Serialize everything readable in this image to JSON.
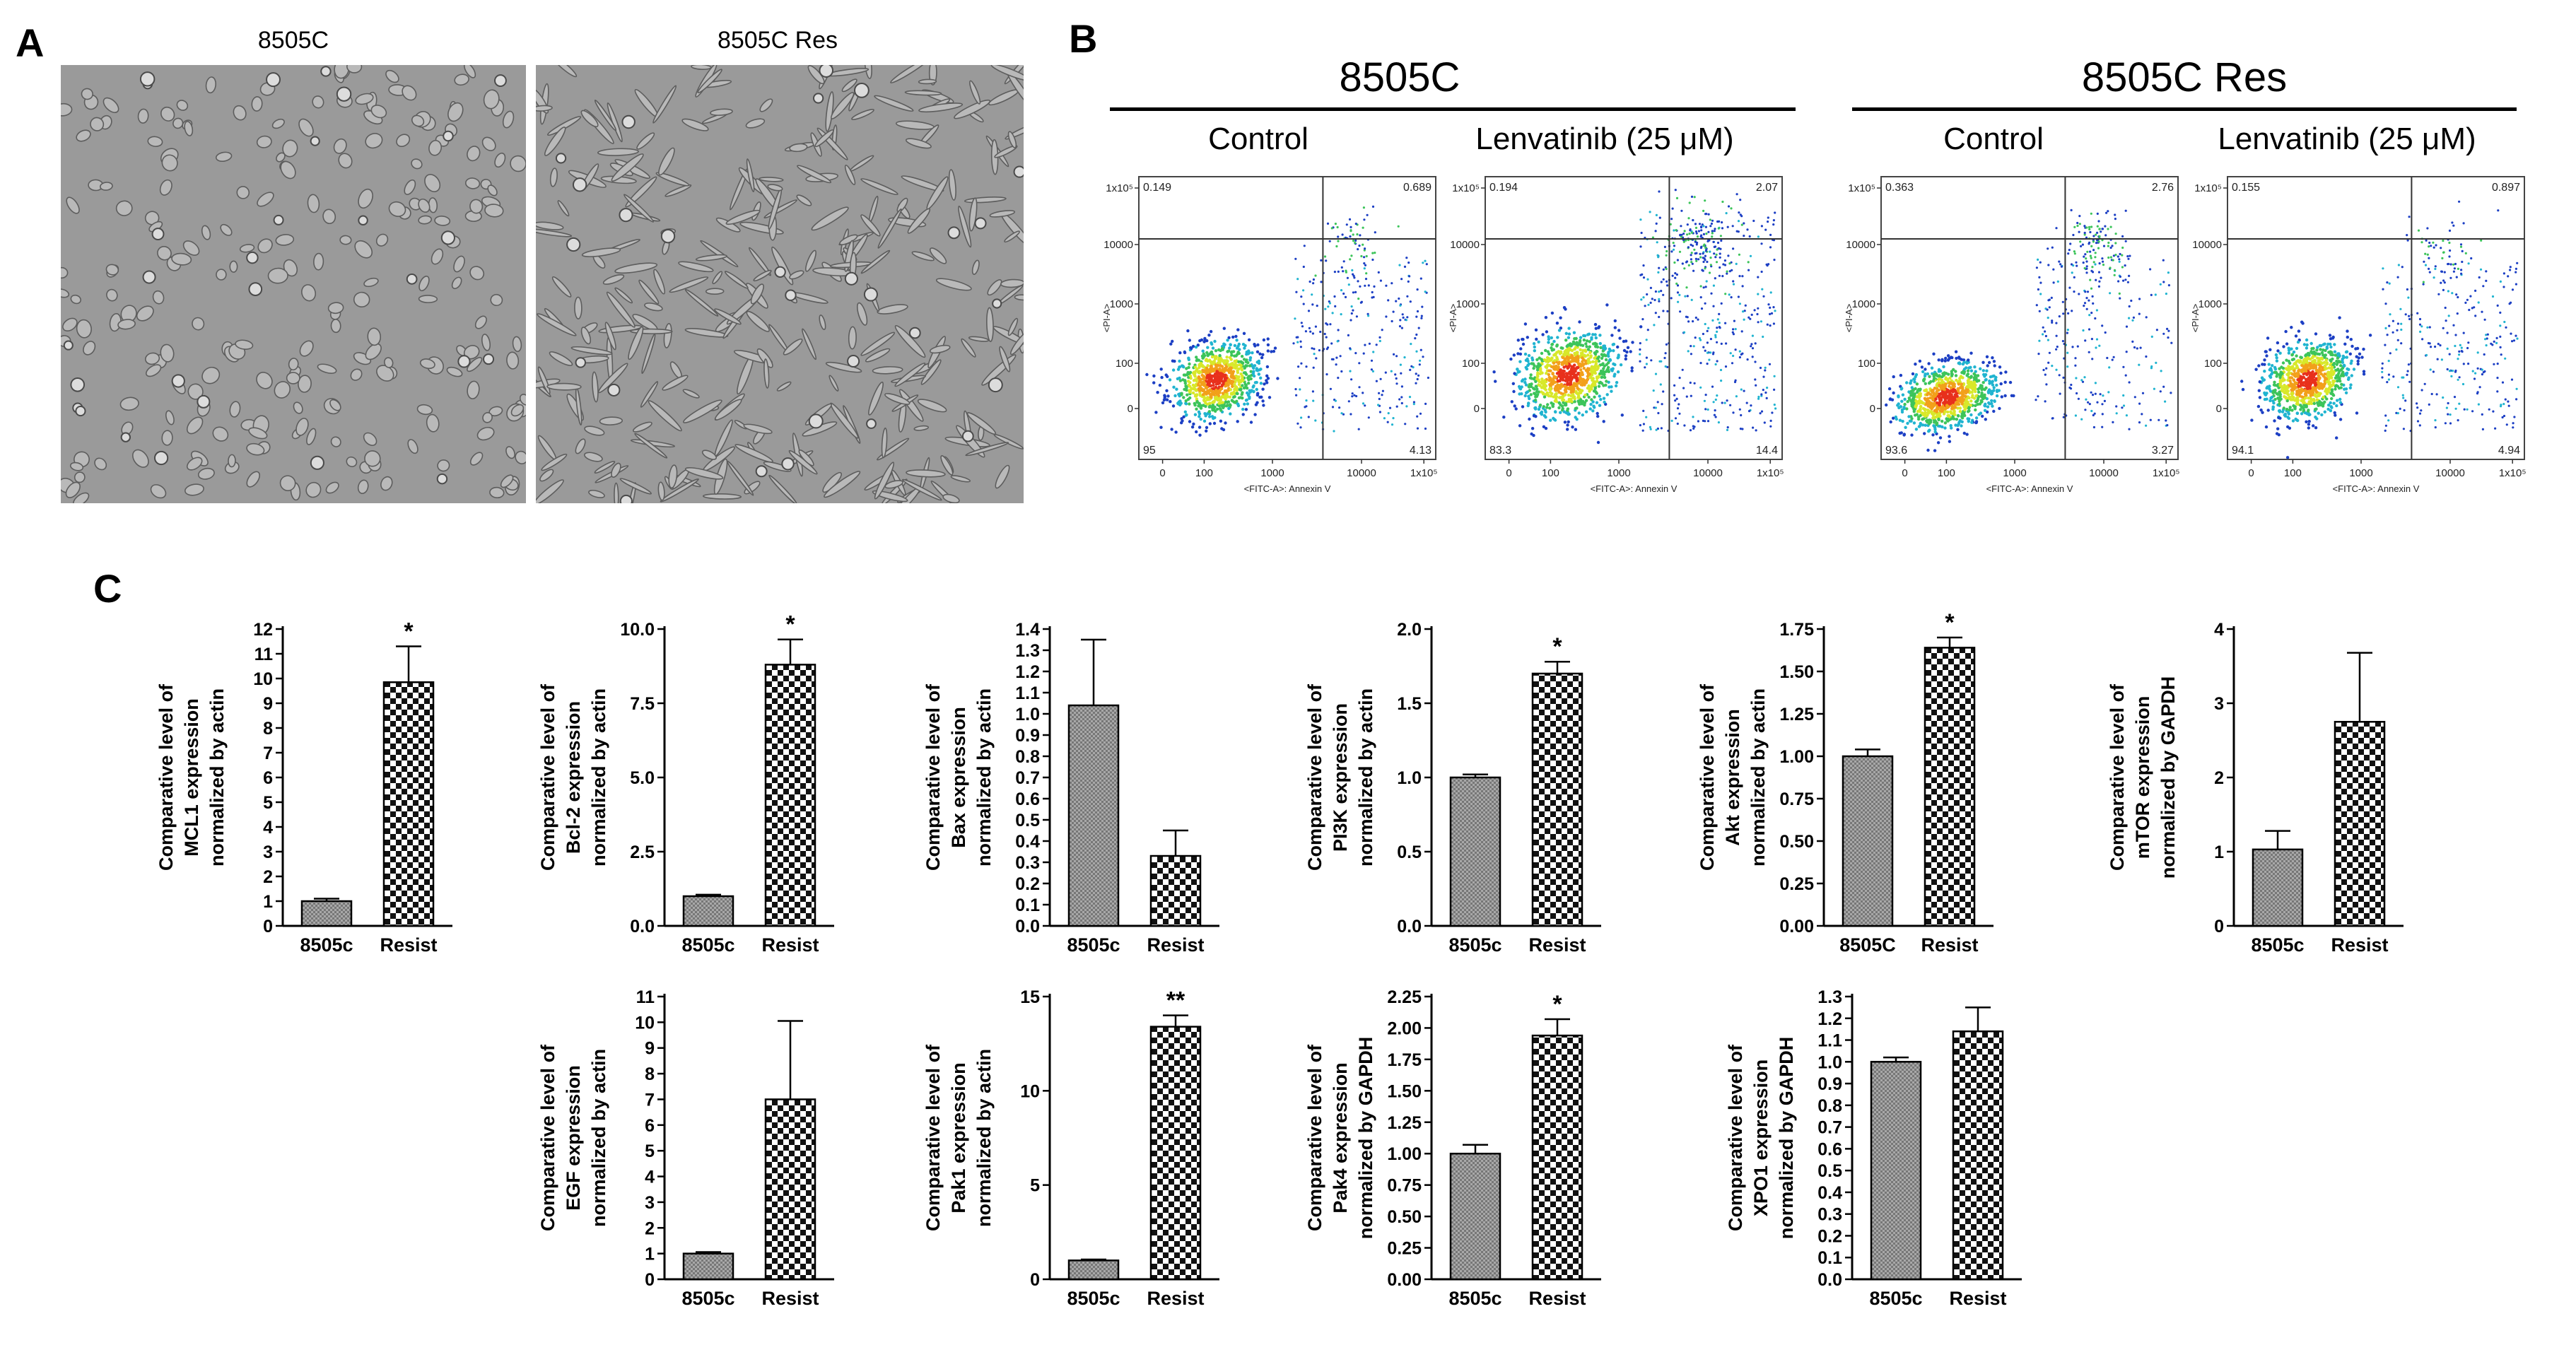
{
  "panel_labels": {
    "a": "A",
    "b": "B",
    "c": "C"
  },
  "panel_a": {
    "images": [
      {
        "caption": "8505C",
        "texture": "rounded cells"
      },
      {
        "caption": "8505C Res",
        "texture": "spindle cells"
      }
    ]
  },
  "panel_b": {
    "groups": [
      {
        "title": "8505C",
        "plots": [
          {
            "title": "Control",
            "q_ul": "0.149",
            "q_ur": "0.689",
            "q_ll": "95",
            "q_lr": "4.13",
            "y_ticks": [
              "1x10⁵",
              "10000",
              "1000",
              "100",
              "0"
            ],
            "x_ticks": [
              "0",
              "100",
              "1000",
              "10000",
              "1x10⁵"
            ],
            "y_title": "<PI-A>",
            "x_title": "<FITC-A>: Annexin V"
          },
          {
            "title": "Lenvatinib (25 μM)",
            "q_ul": "0.194",
            "q_ur": "2.07",
            "q_ll": "83.3",
            "q_lr": "14.4",
            "y_ticks": [
              "1x10⁵",
              "10000",
              "1000",
              "100",
              "0"
            ],
            "x_ticks": [
              "0",
              "100",
              "1000",
              "10000",
              "1x10⁵"
            ],
            "y_title": "<PI-A>",
            "x_title": "<FITC-A>: Annexin V"
          }
        ]
      },
      {
        "title": "8505C Res",
        "plots": [
          {
            "title": "Control",
            "q_ul": "0.363",
            "q_ur": "2.76",
            "q_ll": "93.6",
            "q_lr": "3.27",
            "y_ticks": [
              "1x10⁵",
              "10000",
              "1000",
              "100",
              "0"
            ],
            "x_ticks": [
              "0",
              "100",
              "1000",
              "10000",
              "1x10⁵"
            ],
            "y_title": "<PI-A>",
            "x_title": "<FITC-A>: Annexin V"
          },
          {
            "title": "Lenvatinib (25 μM)",
            "q_ul": "0.155",
            "q_ur": "0.897",
            "q_ll": "94.1",
            "q_lr": "4.94",
            "y_ticks": [
              "1x10⁵",
              "10000",
              "1000",
              "100",
              "0"
            ],
            "x_ticks": [
              "0",
              "100",
              "1000",
              "10000",
              "1x10⁵"
            ],
            "y_title": "<PI-A>",
            "x_title": "<FITC-A>: Annexin V"
          }
        ]
      }
    ]
  },
  "chart_data": [
    {
      "type": "bar",
      "title": "",
      "ylabel_lines": [
        "Comparative level of",
        "MCL1 expression",
        "normalized by actin"
      ],
      "categories": [
        "8505c",
        "Resist"
      ],
      "values": [
        1.0,
        9.85
      ],
      "errors": [
        0.1,
        1.45
      ],
      "ylim": [
        0,
        12
      ],
      "yticks": [
        0,
        1,
        2,
        3,
        4,
        5,
        6,
        7,
        8,
        9,
        10,
        11,
        12
      ],
      "tick_labels": [
        "0",
        "1",
        "2",
        "3",
        "4",
        "5",
        "6",
        "7",
        "8",
        "9",
        "10",
        "11",
        "12"
      ],
      "significance": [
        "",
        "*"
      ]
    },
    {
      "type": "bar",
      "title": "",
      "ylabel_lines": [
        "Comparative level of",
        "Bcl-2 expression",
        "normalized by actin"
      ],
      "categories": [
        "8505c",
        "Resist"
      ],
      "values": [
        1.0,
        8.8
      ],
      "errors": [
        0.05,
        0.85
      ],
      "ylim": [
        0,
        10
      ],
      "yticks": [
        0,
        2.5,
        5,
        7.5,
        10
      ],
      "tick_labels": [
        "0.0",
        "2.5",
        "5.0",
        "7.5",
        "10.0"
      ],
      "significance": [
        "",
        "*"
      ]
    },
    {
      "type": "bar",
      "title": "",
      "ylabel_lines": [
        "Comparative level of",
        "Bax expression",
        "normalized by actin"
      ],
      "categories": [
        "8505c",
        "Resist"
      ],
      "values": [
        1.04,
        0.33
      ],
      "errors": [
        0.31,
        0.12
      ],
      "ylim": [
        0,
        1.4
      ],
      "yticks": [
        0,
        0.1,
        0.2,
        0.3,
        0.4,
        0.5,
        0.6,
        0.7,
        0.8,
        0.9,
        1.0,
        1.1,
        1.2,
        1.3,
        1.4
      ],
      "tick_labels": [
        "0.0",
        "0.1",
        "0.2",
        "0.3",
        "0.4",
        "0.5",
        "0.6",
        "0.7",
        "0.8",
        "0.9",
        "1.0",
        "1.1",
        "1.2",
        "1.3",
        "1.4"
      ],
      "significance": [
        "",
        ""
      ]
    },
    {
      "type": "bar",
      "title": "",
      "ylabel_lines": [
        "Comparative level of",
        "PI3K expression",
        "normalized by actin"
      ],
      "categories": [
        "8505c",
        "Resist"
      ],
      "values": [
        1.0,
        1.7
      ],
      "errors": [
        0.02,
        0.08
      ],
      "ylim": [
        0,
        2.0
      ],
      "yticks": [
        0,
        0.5,
        1.0,
        1.5,
        2.0
      ],
      "tick_labels": [
        "0.0",
        "0.5",
        "1.0",
        "1.5",
        "2.0"
      ],
      "significance": [
        "",
        "*"
      ]
    },
    {
      "type": "bar",
      "title": "",
      "ylabel_lines": [
        "Comparative level of",
        "Akt expression",
        "normalized by actin"
      ],
      "categories": [
        "8505C",
        "Resist"
      ],
      "values": [
        1.0,
        1.64
      ],
      "errors": [
        0.04,
        0.06
      ],
      "ylim": [
        0,
        1.75
      ],
      "yticks": [
        0,
        0.25,
        0.5,
        0.75,
        1.0,
        1.25,
        1.5,
        1.75
      ],
      "tick_labels": [
        "0.00",
        "0.25",
        "0.50",
        "0.75",
        "1.00",
        "1.25",
        "1.50",
        "1.75"
      ],
      "significance": [
        "",
        "*"
      ]
    },
    {
      "type": "bar",
      "title": "",
      "ylabel_lines": [
        "Comparative level of",
        "mTOR expression",
        "normalized by GAPDH"
      ],
      "categories": [
        "8505c",
        "Resist"
      ],
      "values": [
        1.03,
        2.75
      ],
      "errors": [
        0.25,
        0.93
      ],
      "ylim": [
        0,
        4
      ],
      "yticks": [
        0,
        1,
        2,
        3,
        4
      ],
      "tick_labels": [
        "0",
        "1",
        "2",
        "3",
        "4"
      ],
      "significance": [
        "",
        ""
      ]
    },
    {
      "type": "bar",
      "title": "",
      "ylabel_lines": [
        "Comparative level of",
        "EGF expression",
        "normalized by actin"
      ],
      "categories": [
        "8505c",
        "Resist"
      ],
      "values": [
        1.0,
        7.0
      ],
      "errors": [
        0.06,
        3.05
      ],
      "ylim": [
        0,
        11
      ],
      "yticks": [
        0,
        1,
        2,
        3,
        4,
        5,
        6,
        7,
        8,
        9,
        10,
        11
      ],
      "tick_labels": [
        "0",
        "1",
        "2",
        "3",
        "4",
        "5",
        "6",
        "7",
        "8",
        "9",
        "10",
        "11"
      ],
      "significance": [
        "",
        ""
      ]
    },
    {
      "type": "bar",
      "title": "",
      "ylabel_lines": [
        "Comparative level of",
        "Pak1 expression",
        "normalized by actin"
      ],
      "categories": [
        "8505c",
        "Resist"
      ],
      "values": [
        1.0,
        13.4
      ],
      "errors": [
        0.05,
        0.6
      ],
      "ylim": [
        0,
        15
      ],
      "yticks": [
        0,
        5,
        10,
        15
      ],
      "tick_labels": [
        "0",
        "5",
        "10",
        "15"
      ],
      "significance": [
        "",
        "**"
      ]
    },
    {
      "type": "bar",
      "title": "",
      "ylabel_lines": [
        "Comparative level of",
        "Pak4 expression",
        "normalized by GAPDH"
      ],
      "categories": [
        "8505c",
        "Resist"
      ],
      "values": [
        1.0,
        1.94
      ],
      "errors": [
        0.07,
        0.13
      ],
      "ylim": [
        0,
        2.25
      ],
      "yticks": [
        0,
        0.25,
        0.5,
        0.75,
        1.0,
        1.25,
        1.5,
        1.75,
        2.0,
        2.25
      ],
      "tick_labels": [
        "0.00",
        "0.25",
        "0.50",
        "0.75",
        "1.00",
        "1.25",
        "1.50",
        "1.75",
        "2.00",
        "2.25"
      ],
      "significance": [
        "",
        "*"
      ]
    },
    {
      "type": "bar",
      "title": "",
      "ylabel_lines": [
        "Comparative level of",
        "XPO1 expression",
        "normalized by GAPDH"
      ],
      "categories": [
        "8505c",
        "Resist"
      ],
      "values": [
        1.0,
        1.14
      ],
      "errors": [
        0.02,
        0.11
      ],
      "ylim": [
        0,
        1.3
      ],
      "yticks": [
        0,
        0.1,
        0.2,
        0.3,
        0.4,
        0.5,
        0.6,
        0.7,
        0.8,
        0.9,
        1.0,
        1.1,
        1.2,
        1.3
      ],
      "tick_labels": [
        "0.0",
        "0.1",
        "0.2",
        "0.3",
        "0.4",
        "0.5",
        "0.6",
        "0.7",
        "0.8",
        "0.9",
        "1.0",
        "1.1",
        "1.2",
        "1.3"
      ],
      "significance": [
        "",
        ""
      ]
    }
  ],
  "colors": {
    "micro_bg": "#9a9a9a",
    "bar_left": "#a8a8a8",
    "density_hot": "#e8301c",
    "density_cold": "#1c3fc4"
  }
}
